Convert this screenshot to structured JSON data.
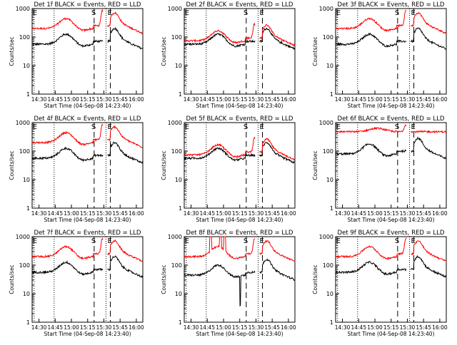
{
  "chart_data": {
    "type": "line",
    "panels": [
      {
        "title": "Det 1f BLACK = Events, RED = LLD",
        "variant": "a"
      },
      {
        "title": "Det 2f BLACK = Events, RED = LLD",
        "variant": "b"
      },
      {
        "title": "Det 3f BLACK = Events, RED = LLD",
        "variant": "a"
      },
      {
        "title": "Det 4f BLACK = Events, RED = LLD",
        "variant": "a"
      },
      {
        "title": "Det 5f BLACK = Events, RED = LLD",
        "variant": "b"
      },
      {
        "title": "Det 6f BLACK = Events, RED = LLD",
        "variant": "c"
      },
      {
        "title": "Det 7f BLACK = Events, RED = LLD",
        "variant": "a"
      },
      {
        "title": "Det 8f BLACK = Events, RED = LLD",
        "variant": "d"
      },
      {
        "title": "Det 9f BLACK = Events, RED = LLD",
        "variant": "a"
      }
    ],
    "xlabel": "Start Time (04-Sep-08 14:23:40)",
    "ylabel": "Counts/sec",
    "xticks": [
      "14:30",
      "14:45",
      "15:00",
      "15:15",
      "15:30",
      "15:45",
      "16:00"
    ],
    "xtick_minutes": [
      30,
      45,
      60,
      75,
      90,
      105,
      120
    ],
    "xlim_minutes": [
      23.67,
      126
    ],
    "yscale": "log",
    "ylim": [
      1,
      1000
    ],
    "yticks": [
      "1",
      "10",
      "100",
      "1000"
    ],
    "markers": [
      {
        "label": "E",
        "minute": 25.5,
        "style": "dotted"
      },
      {
        "label": "S",
        "minute": 81,
        "style": "dashed"
      },
      {
        "label": "E",
        "minute": 96,
        "style": "dashed"
      },
      {
        "label": "",
        "minute": 44,
        "style": "dotted"
      },
      {
        "label": "",
        "minute": 92,
        "style": "dotted"
      }
    ],
    "series": [
      {
        "name": "Events",
        "color": "#000000"
      },
      {
        "name": "LLD",
        "color": "#ff0000"
      }
    ]
  }
}
